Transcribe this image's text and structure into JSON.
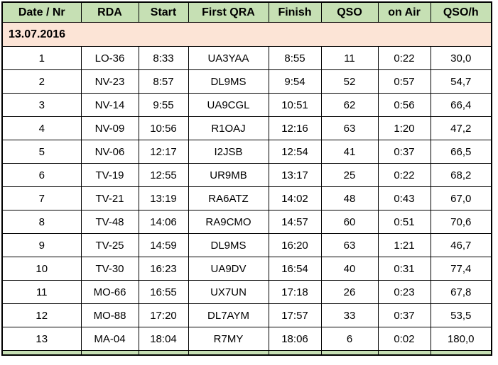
{
  "colors": {
    "header_bg": "#c6e0b4",
    "date_row_bg": "#fce4d6",
    "border": "#000000",
    "text": "#000000",
    "row_bg": "#ffffff"
  },
  "chart_data": {
    "type": "table",
    "columns": [
      "Date / Nr",
      "RDA",
      "Start",
      "First QRA",
      "Finish",
      "QSO",
      "on Air",
      "QSO/h"
    ],
    "group_row": "13.07.2016",
    "rows": [
      [
        "1",
        "LO-36",
        "8:33",
        "UA3YAA",
        "8:55",
        "11",
        "0:22",
        "30,0"
      ],
      [
        "2",
        "NV-23",
        "8:57",
        "DL9MS",
        "9:54",
        "52",
        "0:57",
        "54,7"
      ],
      [
        "3",
        "NV-14",
        "9:55",
        "UA9CGL",
        "10:51",
        "62",
        "0:56",
        "66,4"
      ],
      [
        "4",
        "NV-09",
        "10:56",
        "R1OAJ",
        "12:16",
        "63",
        "1:20",
        "47,2"
      ],
      [
        "5",
        "NV-06",
        "12:17",
        "I2JSB",
        "12:54",
        "41",
        "0:37",
        "66,5"
      ],
      [
        "6",
        "TV-19",
        "12:55",
        "UR9MB",
        "13:17",
        "25",
        "0:22",
        "68,2"
      ],
      [
        "7",
        "TV-21",
        "13:19",
        "RA6ATZ",
        "14:02",
        "48",
        "0:43",
        "67,0"
      ],
      [
        "8",
        "TV-48",
        "14:06",
        "RA9CMO",
        "14:57",
        "60",
        "0:51",
        "70,6"
      ],
      [
        "9",
        "TV-25",
        "14:59",
        "DL9MS",
        "16:20",
        "63",
        "1:21",
        "46,7"
      ],
      [
        "10",
        "TV-30",
        "16:23",
        "UA9DV",
        "16:54",
        "40",
        "0:31",
        "77,4"
      ],
      [
        "11",
        "MO-66",
        "16:55",
        "UX7UN",
        "17:18",
        "26",
        "0:23",
        "67,8"
      ],
      [
        "12",
        "MO-88",
        "17:20",
        "DL7AYM",
        "17:57",
        "33",
        "0:37",
        "53,5"
      ],
      [
        "13",
        "MA-04",
        "18:04",
        "R7MY",
        "18:06",
        "6",
        "0:02",
        "180,0"
      ]
    ]
  }
}
